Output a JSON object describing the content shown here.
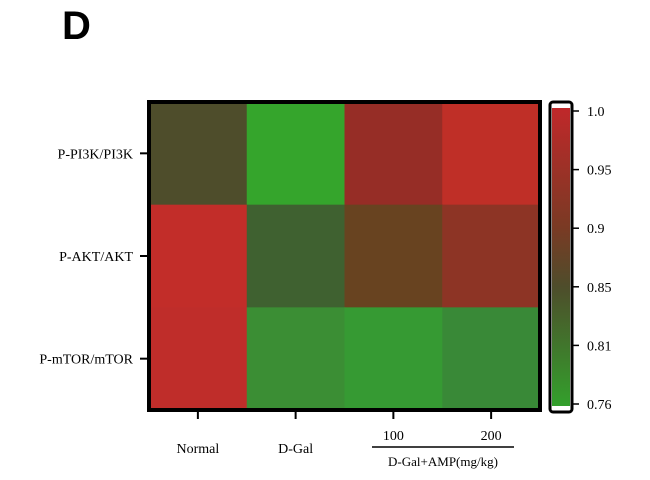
{
  "panel_label": "D",
  "chart_data": {
    "type": "heatmap",
    "rows": [
      "P-PI3K/PI3K",
      "P-AKT/AKT",
      "P-mTOR/mTOR"
    ],
    "columns": [
      "Normal",
      "D-Gal",
      "100",
      "200"
    ],
    "column_group": {
      "label": "D-Gal+AMP(mg/kg)",
      "columns": [
        "100",
        "200"
      ]
    },
    "values": [
      [
        0.85,
        0.76,
        0.95,
        0.99
      ],
      [
        1.0,
        0.82,
        0.88,
        0.93
      ],
      [
        1.0,
        0.79,
        0.77,
        0.79
      ]
    ],
    "colorbar": {
      "ticks": [
        "1.0",
        "0.95",
        "0.9",
        "0.85",
        "0.81",
        "0.76"
      ],
      "range": [
        0.76,
        1.0
      ],
      "low_color": "#33a02c",
      "high_color": "#c0282a"
    },
    "cell_colors": [
      [
        "#4e4d2b",
        "#35a52c",
        "#962d26",
        "#bf2f27"
      ],
      [
        "#c22d29",
        "#3f6130",
        "#684320",
        "#8d3425"
      ],
      [
        "#bf2d2a",
        "#3b8e34",
        "#369a33",
        "#398937"
      ]
    ]
  }
}
